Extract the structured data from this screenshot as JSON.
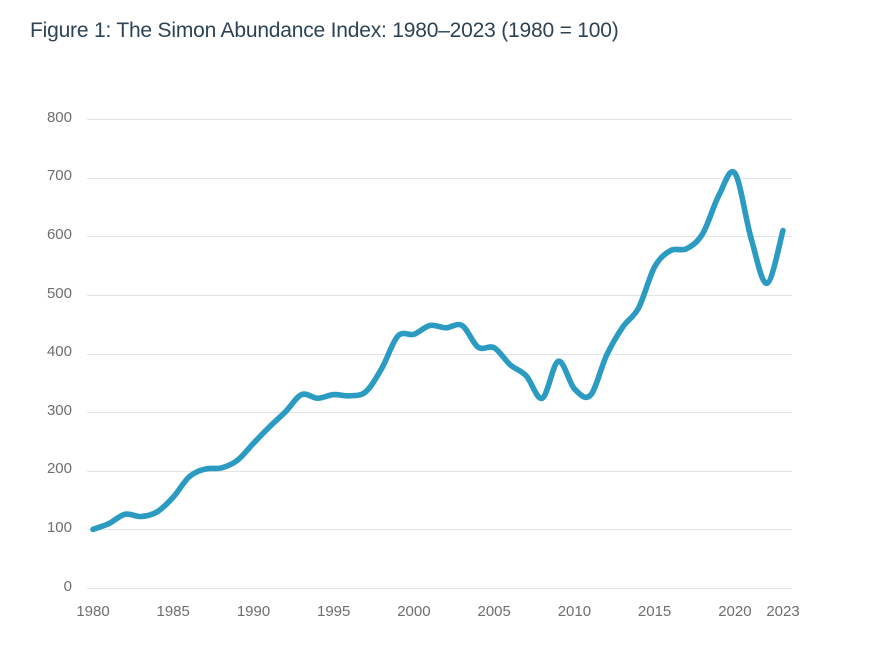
{
  "figure": {
    "title": "Figure 1: The Simon Abundance Index: 1980–2023 (1980 = 100)"
  },
  "colors": {
    "line": "#2b9bc1",
    "grid": "#e4e4e4",
    "tick_text": "#6e6e6e",
    "title_text": "#2d4355",
    "background": "#ffffff"
  },
  "chart_data": {
    "type": "line",
    "title": "Figure 1: The Simon Abundance Index: 1980–2023 (1980 = 100)",
    "xlabel": "",
    "ylabel": "",
    "xlim": [
      1980,
      2023
    ],
    "ylim": [
      0,
      800
    ],
    "grid": "horizontal-only",
    "legend": "none",
    "line_color": "#2b9bc1",
    "line_width": 5.6,
    "smoothing": "spline",
    "x_ticks": [
      "1980",
      "1985",
      "1990",
      "1995",
      "2000",
      "2005",
      "2010",
      "2015",
      "2020",
      "2023"
    ],
    "y_ticks": [
      "800",
      "700",
      "600",
      "500",
      "400",
      "300",
      "200",
      "100",
      "0"
    ],
    "x": [
      1980,
      1981,
      1982,
      1983,
      1984,
      1985,
      1986,
      1987,
      1988,
      1989,
      1990,
      1991,
      1992,
      1993,
      1994,
      1995,
      1996,
      1997,
      1998,
      1999,
      2000,
      2001,
      2002,
      2003,
      2004,
      2005,
      2006,
      2007,
      2008,
      2009,
      2010,
      2011,
      2012,
      2013,
      2014,
      2015,
      2016,
      2017,
      2018,
      2019,
      2020,
      2021,
      2022,
      2023
    ],
    "series": [
      {
        "name": "Simon Abundance Index (1980 = 100)",
        "values": [
          100,
          110,
          126,
          122,
          130,
          155,
          190,
          203,
          205,
          218,
          247,
          275,
          301,
          330,
          324,
          330,
          328,
          335,
          375,
          430,
          433,
          448,
          444,
          448,
          411,
          410,
          381,
          362,
          324,
          387,
          340,
          329,
          397,
          445,
          478,
          548,
          576,
          579,
          605,
          670,
          708,
          598,
          520,
          610
        ]
      }
    ]
  }
}
